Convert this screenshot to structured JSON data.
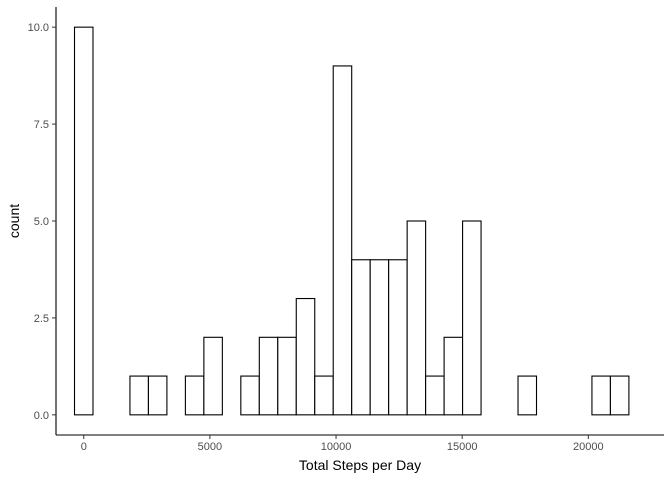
{
  "chart_data": {
    "type": "bar",
    "subtype": "histogram",
    "title": "",
    "xlabel": "Total Steps per Day",
    "ylabel": "count",
    "xlim": [
      -1100,
      23000
    ],
    "ylim": [
      -0.52,
      10.52
    ],
    "x_ticks": [
      0,
      5000,
      10000,
      15000,
      20000
    ],
    "x_tick_labels": [
      "0",
      "5000",
      "10000",
      "15000",
      "20000"
    ],
    "y_ticks": [
      0,
      2.5,
      5,
      7.5,
      10
    ],
    "y_tick_labels": [
      "0.0",
      "2.5",
      "5.0",
      "7.5",
      "10.0"
    ],
    "bin_width": 732.5,
    "bin_centers": [
      0,
      732.5,
      1465,
      2197.5,
      2930,
      3662.5,
      4395,
      5127.5,
      5860,
      6592.5,
      7325,
      8057.5,
      8790,
      9522.5,
      10255,
      10987.5,
      11720,
      12452.5,
      13185,
      13917.5,
      14650,
      15382.5,
      16115,
      16847.5,
      17580,
      18312.5,
      19045,
      19777.5,
      20510,
      21242.5
    ],
    "values": [
      10,
      0,
      0,
      1,
      1,
      0,
      1,
      2,
      0,
      1,
      2,
      2,
      3,
      1,
      9,
      4,
      4,
      4,
      5,
      1,
      2,
      5,
      0,
      0,
      1,
      0,
      0,
      0,
      1,
      1
    ],
    "bar_fill": "#ffffff",
    "bar_stroke": "#000000",
    "grid": false
  }
}
